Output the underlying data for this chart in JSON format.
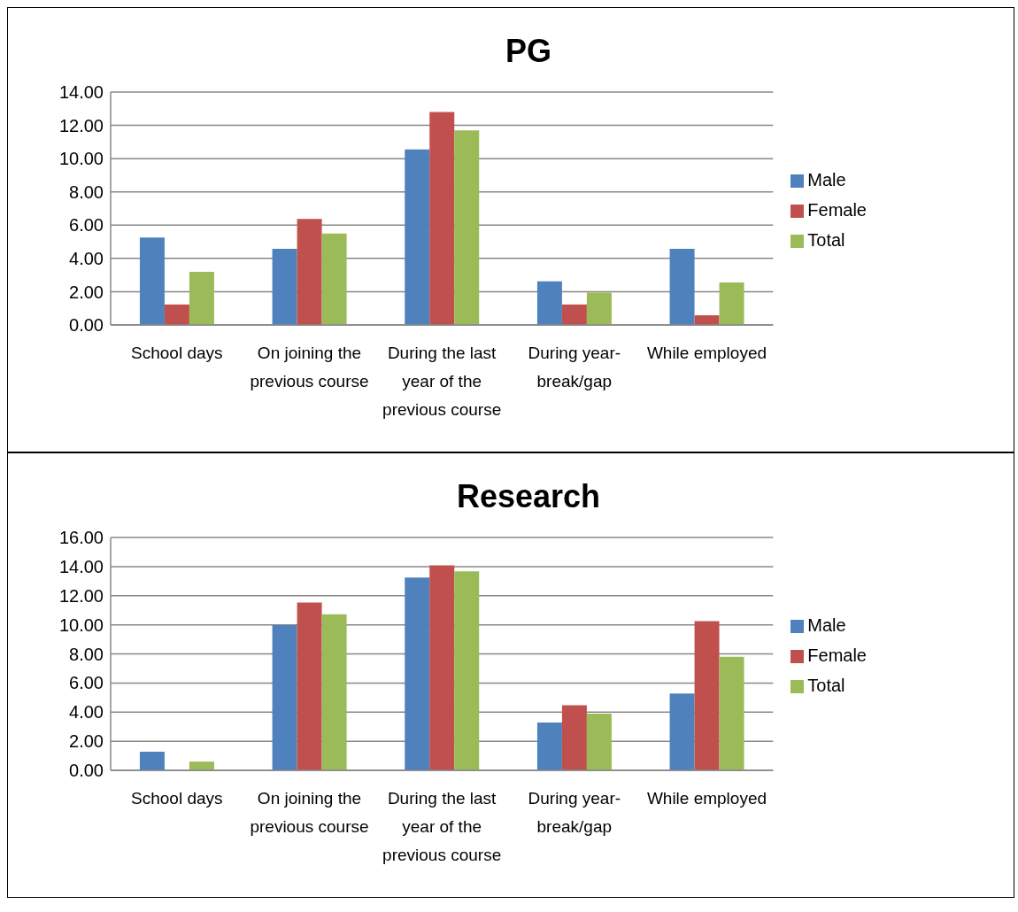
{
  "chart_data": [
    {
      "type": "bar",
      "title": "PG",
      "categories": [
        "School days",
        "On joining the previous course",
        "During the last year of the previous course",
        "During year-break/gap",
        "While employed"
      ],
      "series": [
        {
          "name": "Male",
          "color": "#4f81bd",
          "values": [
            5.26,
            4.58,
            10.55,
            2.62,
            4.58
          ]
        },
        {
          "name": "Female",
          "color": "#c0504d",
          "values": [
            1.23,
            6.37,
            12.8,
            1.23,
            0.58
          ]
        },
        {
          "name": "Total",
          "color": "#9bbb59",
          "values": [
            3.2,
            5.5,
            11.7,
            1.94,
            2.55
          ]
        }
      ],
      "ylim": [
        0,
        14
      ],
      "yticks": [
        {
          "value": 0,
          "label": "0.00"
        },
        {
          "value": 2,
          "label": "2.00"
        },
        {
          "value": 4,
          "label": "4.00"
        },
        {
          "value": 6,
          "label": "6.00"
        },
        {
          "value": 8,
          "label": "8.00"
        },
        {
          "value": 10,
          "label": "10.00"
        },
        {
          "value": 12,
          "label": "12.00"
        },
        {
          "value": 14,
          "label": "14.00"
        }
      ],
      "grid": "y",
      "legend": "right"
    },
    {
      "type": "bar",
      "title": "Research",
      "categories": [
        "School days",
        "On joining the previous course",
        "During the last year of the previous course",
        "During year-break/gap",
        "While employed"
      ],
      "series": [
        {
          "name": "Male",
          "color": "#4f81bd",
          "values": [
            1.28,
            9.98,
            13.24,
            3.29,
            5.28
          ]
        },
        {
          "name": "Female",
          "color": "#c0504d",
          "values": [
            0,
            11.53,
            14.08,
            4.47,
            10.25
          ]
        },
        {
          "name": "Total",
          "color": "#9bbb59",
          "values": [
            0.6,
            10.72,
            13.68,
            3.9,
            7.8
          ]
        }
      ],
      "ylim": [
        0,
        16
      ],
      "yticks": [
        {
          "value": 0,
          "label": "0.00"
        },
        {
          "value": 2,
          "label": "2.00"
        },
        {
          "value": 4,
          "label": "4.00"
        },
        {
          "value": 6,
          "label": "6.00"
        },
        {
          "value": 8,
          "label": "8.00"
        },
        {
          "value": 10,
          "label": "10.00"
        },
        {
          "value": 12,
          "label": "12.00"
        },
        {
          "value": 14,
          "label": "14.00"
        },
        {
          "value": 16,
          "label": "16.00"
        }
      ],
      "grid": "y",
      "legend": "right"
    }
  ]
}
